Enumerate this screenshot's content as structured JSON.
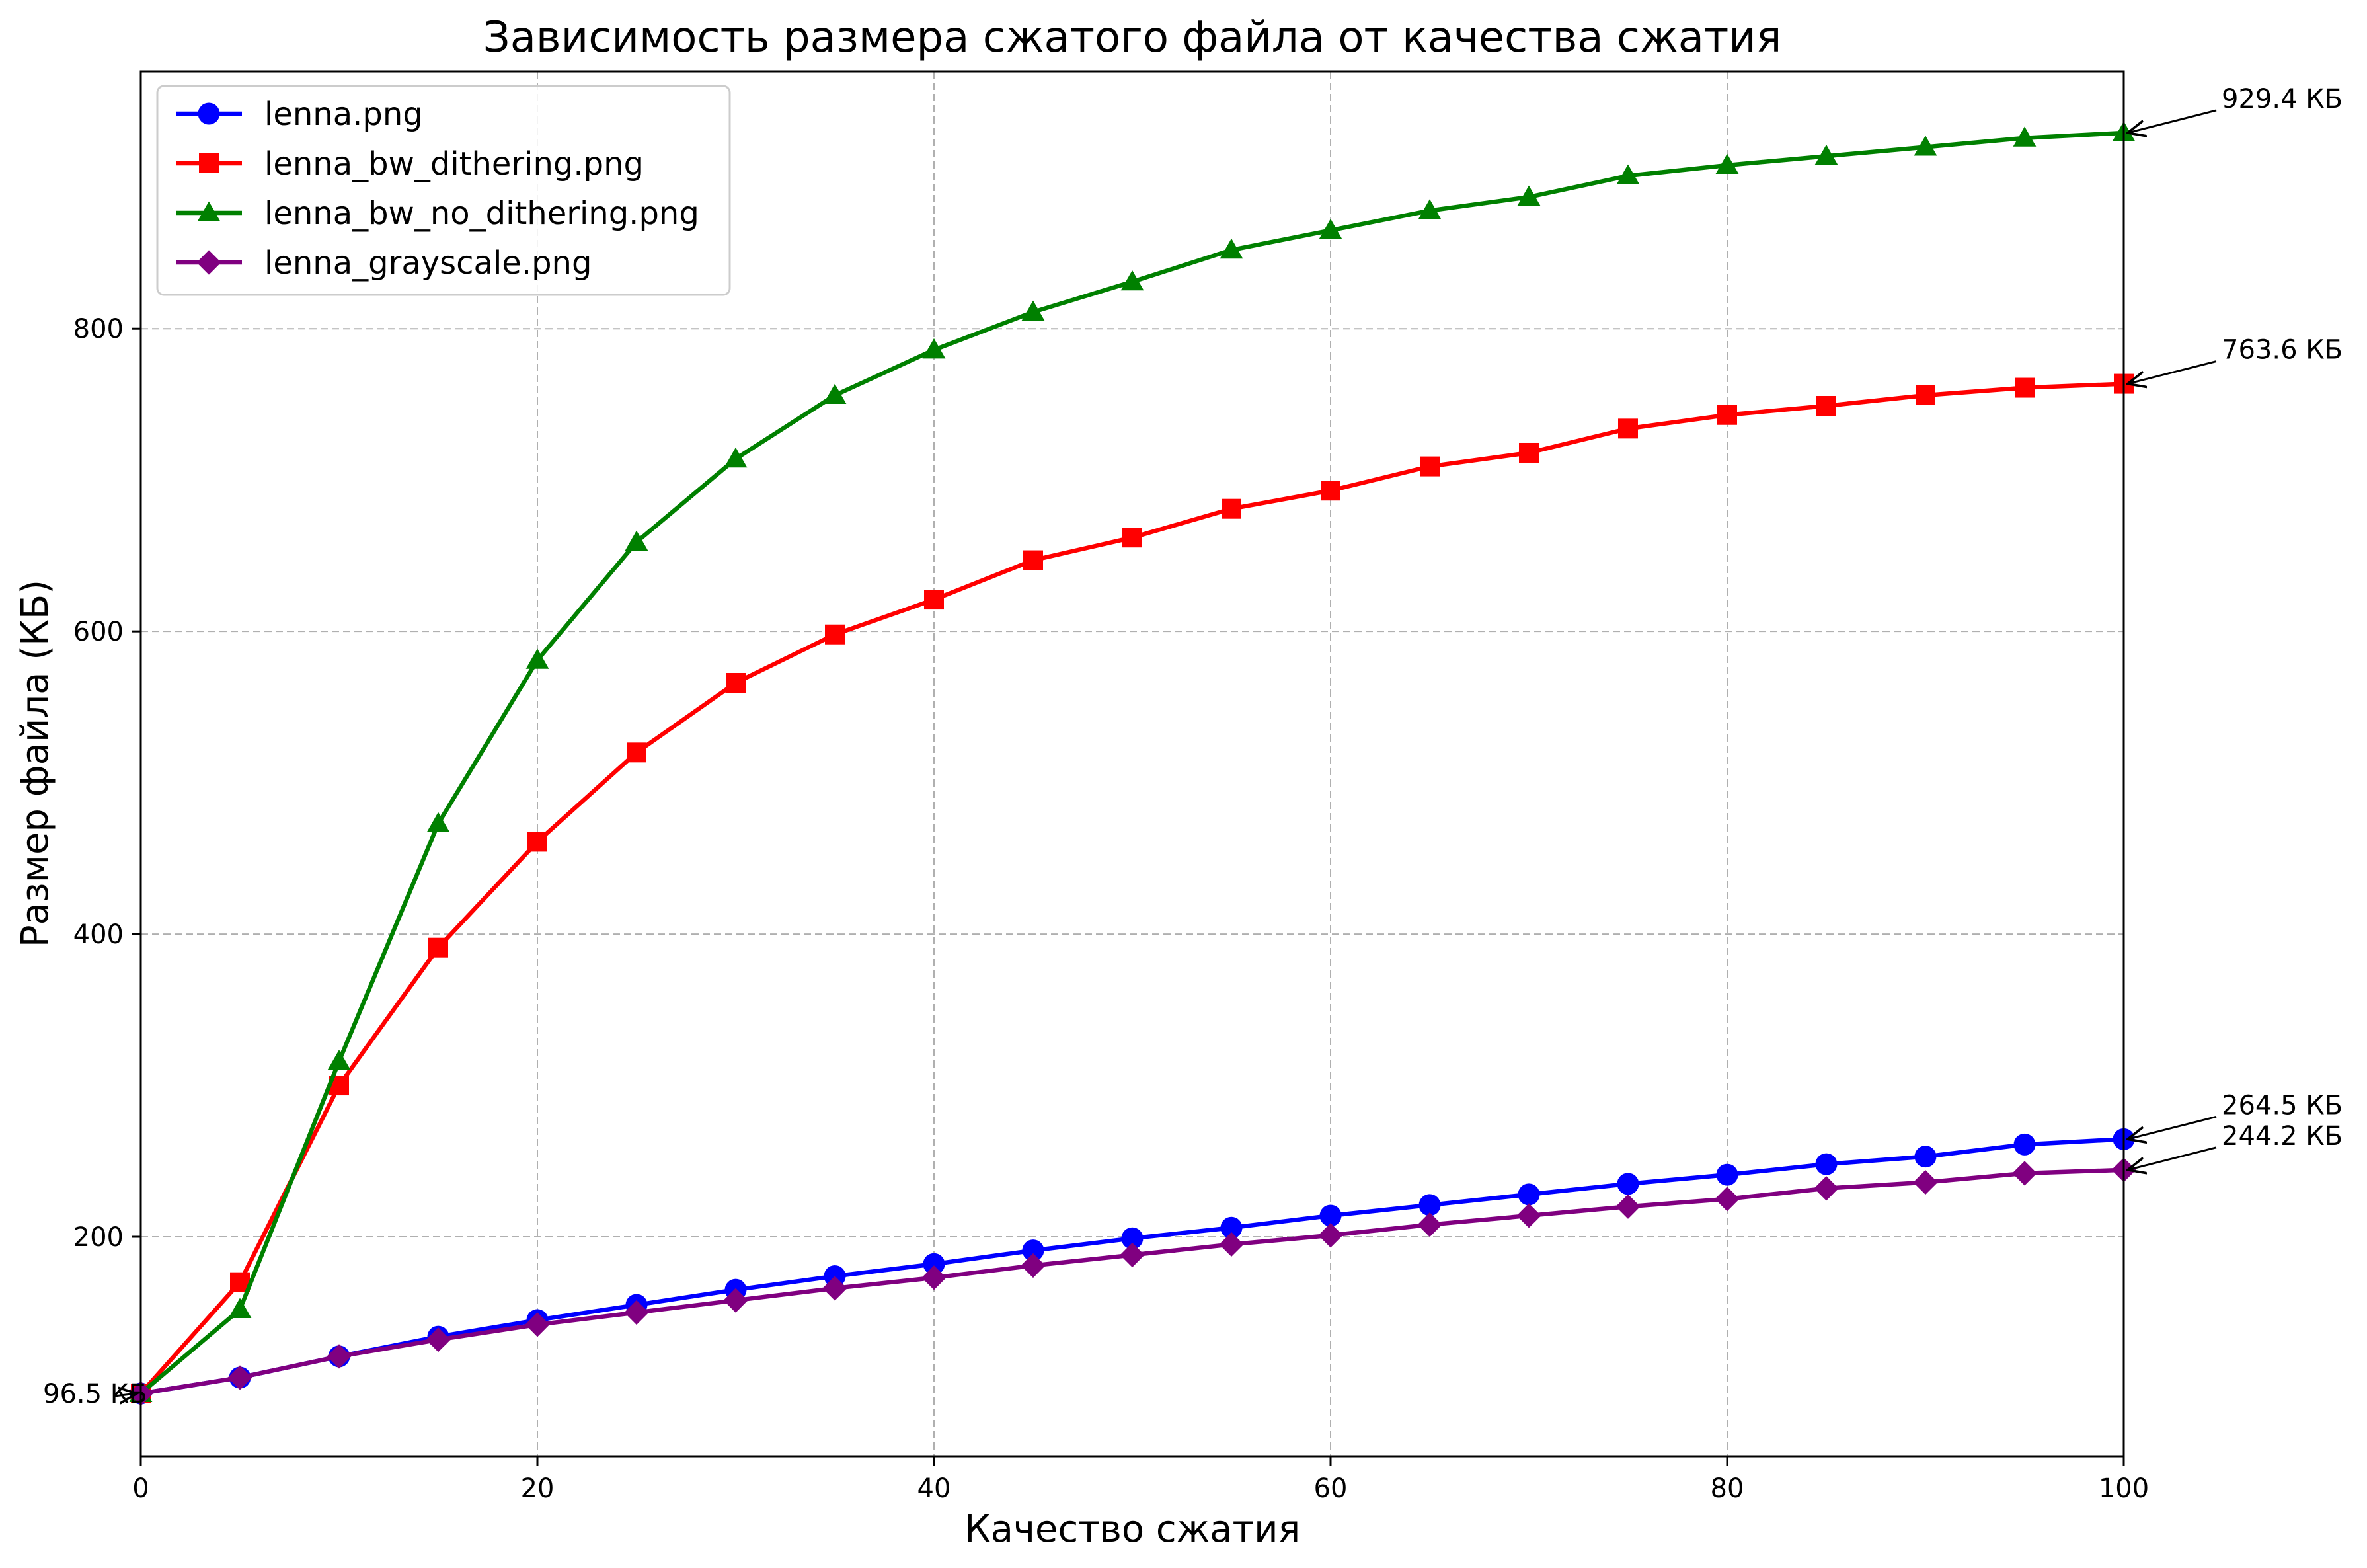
{
  "chart_data": {
    "type": "line",
    "title": "Зависимость размера сжатого файла от качества сжатия",
    "xlabel": "Качество сжатия",
    "ylabel": "Размер файла (КБ)",
    "xlim": [
      0,
      100
    ],
    "ylim": [
      55,
      970
    ],
    "xticks": [
      0,
      20,
      40,
      60,
      80,
      100
    ],
    "yticks": [
      200,
      400,
      600,
      800
    ],
    "grid": true,
    "legend_position": "upper-left",
    "x": [
      0,
      5,
      10,
      15,
      20,
      25,
      30,
      35,
      40,
      45,
      50,
      55,
      60,
      65,
      70,
      75,
      80,
      85,
      90,
      95,
      100
    ],
    "series": [
      {
        "name": "lenna.png",
        "color": "#0000ff",
        "marker": "circle",
        "values": [
          96.5,
          107,
          121,
          134,
          145,
          155,
          165,
          174,
          182,
          191,
          199,
          206,
          214,
          221,
          228,
          235,
          241,
          248,
          253,
          261,
          264.5
        ]
      },
      {
        "name": "lenna_bw_dithering.png",
        "color": "#ff0000",
        "marker": "square",
        "values": [
          96.5,
          170,
          300,
          391,
          461,
          520,
          566,
          598,
          621,
          647,
          662,
          681,
          693,
          709,
          718,
          734,
          743,
          749,
          756,
          761,
          763.6
        ]
      },
      {
        "name": "lenna_bw_no_dithering.png",
        "color": "#008000",
        "marker": "triangle",
        "values": [
          96.5,
          152,
          316,
          473,
          581,
          659,
          714,
          756,
          786,
          811,
          831,
          852,
          865,
          878,
          887,
          901,
          908,
          914,
          920,
          926,
          929.4
        ]
      },
      {
        "name": "lenna_grayscale.png",
        "color": "#800080",
        "marker": "diamond",
        "values": [
          96.5,
          107,
          121,
          132,
          142,
          150,
          158,
          166,
          173,
          181,
          188,
          195,
          201,
          208,
          214,
          220,
          225,
          232,
          236,
          242,
          244.2
        ]
      }
    ],
    "annotations": [
      {
        "text": "929.4 КБ",
        "x": 100,
        "y": 929.4,
        "series": "lenna_bw_no_dithering.png"
      },
      {
        "text": "763.6 КБ",
        "x": 100,
        "y": 763.6,
        "series": "lenna_bw_dithering.png"
      },
      {
        "text": "264.5 КБ",
        "x": 100,
        "y": 264.5,
        "series": "lenna.png"
      },
      {
        "text": "244.2 КБ",
        "x": 100,
        "y": 244.2,
        "series": "lenna_grayscale.png"
      },
      {
        "text": "96.5 КБ",
        "x": 0,
        "y": 96.5,
        "series": "start"
      }
    ]
  }
}
